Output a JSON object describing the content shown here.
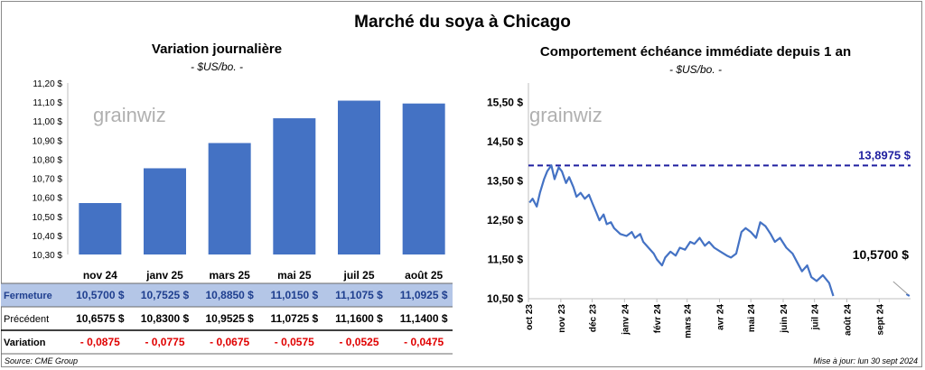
{
  "title": "Marché du soya à Chicago",
  "left": {
    "subtitle": "Variation journalière",
    "unit": "- $US/bo. -",
    "watermark": "grainwiz"
  },
  "right": {
    "subtitle": "Comportement échéance immédiate depuis 1 an",
    "unit": "- $US/bo. -",
    "watermark": "grainwiz"
  },
  "table": {
    "row_labels": [
      "Fermeture",
      "Précédent",
      "Variation"
    ],
    "fermeture": [
      "10,5700  $",
      "10,7525  $",
      "10,8850  $",
      "11,0150  $",
      "11,1075  $",
      "11,0925  $"
    ],
    "precedent": [
      "10,6575  $",
      "10,8300  $",
      "10,9525  $",
      "11,0725  $",
      "11,1600  $",
      "11,1400  $"
    ],
    "variation": [
      "- 0,0875",
      "- 0,0775",
      "- 0,0675",
      "- 0,0575",
      "- 0,0525",
      "- 0,0475"
    ]
  },
  "footer": {
    "source": "Source: CME Group",
    "updated": "Mise à jour: lun 30 sept 2024"
  },
  "colors": {
    "bar": "#4472c4",
    "line": "#4472c4",
    "ref_line": "#1f1fa0",
    "negative": "#e00000",
    "table_highlight": "#b4c6e7"
  },
  "chart_data": [
    {
      "type": "bar",
      "title": "Variation journalière",
      "categories": [
        "nov 24",
        "janv 25",
        "mars 25",
        "mai 25",
        "juil 25",
        "août 25"
      ],
      "values": [
        10.57,
        10.7525,
        10.885,
        11.015,
        11.1075,
        11.0925
      ],
      "ylim": [
        10.3,
        11.2
      ],
      "yticks": [
        "10,30 $",
        "10,40 $",
        "10,50 $",
        "10,60 $",
        "10,70 $",
        "10,80 $",
        "10,90 $",
        "11,00 $",
        "11,10 $",
        "11,20 $"
      ],
      "grid": false
    },
    {
      "type": "line",
      "title": "Comportement échéance immédiate depuis 1 an",
      "ylim": [
        10.5,
        16.0
      ],
      "yticks": [
        "10,50 $",
        "11,50 $",
        "12,50 $",
        "13,50 $",
        "14,50 $",
        "15,50 $"
      ],
      "xticks": [
        "oct 23",
        "nov 23",
        "déc 23",
        "janv 24",
        "févr 24",
        "mars 24",
        "avr 24",
        "mai 24",
        "juin 24",
        "juil 24",
        "août 24",
        "sept 24"
      ],
      "reference_value": 13.8975,
      "reference_label": "13,8975 $",
      "last_value_label": "10,5700 $",
      "grid": false,
      "series": [
        {
          "x": [
            "2023-10-02",
            "2023-10-05",
            "2023-10-09",
            "2023-10-12",
            "2023-10-16",
            "2023-10-19",
            "2023-10-23",
            "2023-10-26",
            "2023-10-30",
            "2023-11-02",
            "2023-11-06",
            "2023-11-09",
            "2023-11-13",
            "2023-11-16",
            "2023-11-20",
            "2023-11-24",
            "2023-11-28",
            "2023-12-01",
            "2023-12-05",
            "2023-12-08",
            "2023-12-12",
            "2023-12-15",
            "2023-12-19",
            "2023-12-22",
            "2023-12-28",
            "2024-01-03",
            "2024-01-08",
            "2024-01-11",
            "2024-01-16",
            "2024-01-19",
            "2024-01-24",
            "2024-01-29",
            "2024-02-01",
            "2024-02-06",
            "2024-02-09",
            "2024-02-14",
            "2024-02-19",
            "2024-02-23",
            "2024-02-28",
            "2024-03-04",
            "2024-03-08",
            "2024-03-13",
            "2024-03-18",
            "2024-03-22",
            "2024-03-27",
            "2024-04-02",
            "2024-04-08",
            "2024-04-12",
            "2024-04-17",
            "2024-04-22",
            "2024-04-26",
            "2024-05-01",
            "2024-05-06",
            "2024-05-10",
            "2024-05-15",
            "2024-05-20",
            "2024-05-24",
            "2024-05-29",
            "2024-06-04",
            "2024-06-10",
            "2024-06-14",
            "2024-06-19",
            "2024-06-24",
            "2024-06-28",
            "2024-07-03",
            "2024-07-09",
            "2024-07-15",
            "2024-07-19",
            "2024-09-27",
            "2024-09-30"
          ],
          "values": [
            12.95,
            13.05,
            12.85,
            13.2,
            13.55,
            13.75,
            13.9,
            13.55,
            13.85,
            13.75,
            13.45,
            13.6,
            13.35,
            13.1,
            13.2,
            13.05,
            13.15,
            12.95,
            12.7,
            12.5,
            12.65,
            12.4,
            12.45,
            12.3,
            12.15,
            12.1,
            12.2,
            12.05,
            12.15,
            11.95,
            11.8,
            11.65,
            11.5,
            11.35,
            11.55,
            11.7,
            11.6,
            11.8,
            11.75,
            11.95,
            11.9,
            12.05,
            11.85,
            11.95,
            11.8,
            11.7,
            11.6,
            11.55,
            11.65,
            12.2,
            12.3,
            12.2,
            12.05,
            12.45,
            12.35,
            12.15,
            11.95,
            12.05,
            11.8,
            11.65,
            11.45,
            11.2,
            11.35,
            11.05,
            10.95,
            11.1,
            10.9,
            10.57,
            10.62,
            10.57
          ]
        }
      ]
    }
  ]
}
